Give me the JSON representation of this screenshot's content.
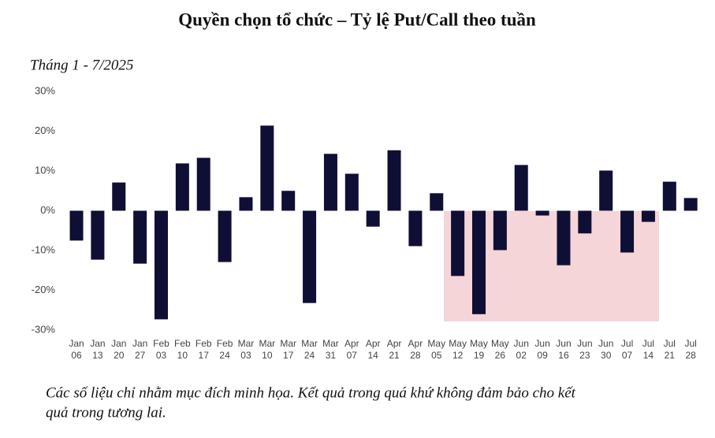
{
  "chart_data": {
    "type": "bar",
    "title": "Quyền chọn tổ chức – Tỷ lệ Put/Call theo tuần",
    "subtitle": "Tháng 1 - 7/2025",
    "footnote": [
      "Các số liệu chỉ nhằm mục đích minh họa. Kết quả trong quá khứ không đảm bảo cho kết",
      "quả trong tương lai."
    ],
    "categories": [
      [
        "Jan",
        "06"
      ],
      [
        "Jan",
        "13"
      ],
      [
        "Jan",
        "20"
      ],
      [
        "Jan",
        "27"
      ],
      [
        "Feb",
        "03"
      ],
      [
        "Feb",
        "10"
      ],
      [
        "Feb",
        "17"
      ],
      [
        "Feb",
        "24"
      ],
      [
        "Mar",
        "03"
      ],
      [
        "Mar",
        "10"
      ],
      [
        "Mar",
        "17"
      ],
      [
        "Mar",
        "24"
      ],
      [
        "Mar",
        "31"
      ],
      [
        "Apr",
        "07"
      ],
      [
        "Apr",
        "14"
      ],
      [
        "Apr",
        "21"
      ],
      [
        "Apr",
        "28"
      ],
      [
        "May",
        "05"
      ],
      [
        "May",
        "12"
      ],
      [
        "May",
        "19"
      ],
      [
        "May",
        "26"
      ],
      [
        "Jun",
        "02"
      ],
      [
        "Jun",
        "09"
      ],
      [
        "Jun",
        "16"
      ],
      [
        "Jun",
        "23"
      ],
      [
        "Jun",
        "30"
      ],
      [
        "Jul",
        "07"
      ],
      [
        "Jul",
        "14"
      ],
      [
        "Jul",
        "21"
      ],
      [
        "Jul",
        "28"
      ]
    ],
    "values": [
      -7.5,
      -12.3,
      7.1,
      -13.3,
      -27.3,
      11.9,
      13.3,
      -12.9,
      3.4,
      21.4,
      5.0,
      -23.2,
      14.3,
      9.3,
      -4.0,
      15.2,
      -8.9,
      4.4,
      -16.4,
      -26.0,
      -9.9,
      11.5,
      -1.2,
      -13.7,
      -5.7,
      10.1,
      -10.5,
      -2.8,
      7.3,
      3.2
    ],
    "color": "#0f0f35",
    "ylim": [
      -30,
      30
    ],
    "yticks": [
      {
        "value": -30,
        "label": "-30%"
      },
      {
        "value": -20,
        "label": "-20%"
      },
      {
        "value": -10,
        "label": "-10%"
      },
      {
        "value": 0,
        "label": "0%"
      },
      {
        "value": 10,
        "label": "10%"
      },
      {
        "value": 20,
        "label": "20%"
      },
      {
        "value": 30,
        "label": "30%"
      }
    ],
    "grid": false
  }
}
